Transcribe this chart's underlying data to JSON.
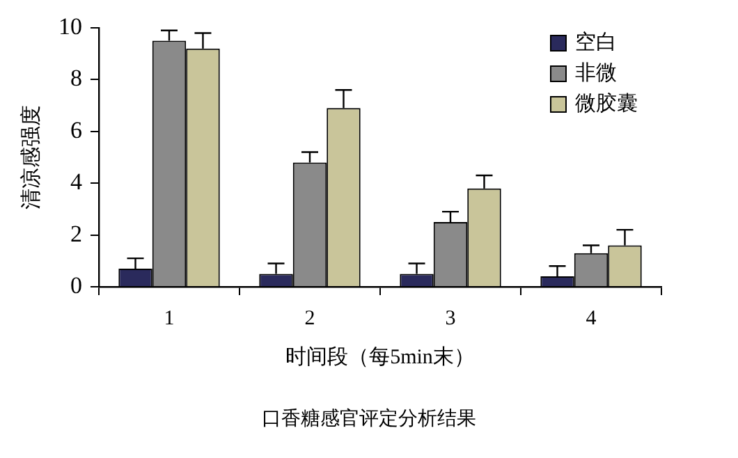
{
  "chart_data": {
    "type": "bar",
    "xlabel": "时间段（每5min末）",
    "ylabel": "清凉感强度",
    "categories": [
      "1",
      "2",
      "3",
      "4"
    ],
    "series": [
      {
        "name": "空白",
        "color": "#2a2a5c",
        "values": [
          0.7,
          0.5,
          0.5,
          0.4
        ],
        "errors": [
          [
            0.7,
            1.1
          ],
          [
            0.5,
            0.9
          ],
          [
            0.5,
            0.9
          ],
          [
            0.4,
            0.8
          ]
        ]
      },
      {
        "name": "非微",
        "color": "#8a8a8a",
        "values": [
          9.5,
          4.8,
          2.5,
          1.3
        ],
        "errors": [
          [
            9.5,
            9.9
          ],
          [
            4.8,
            5.2
          ],
          [
            2.5,
            2.9
          ],
          [
            1.3,
            1.6
          ]
        ]
      },
      {
        "name": "微胶囊",
        "color": "#c9c59a",
        "values": [
          9.2,
          6.9,
          3.8,
          1.6
        ],
        "errors": [
          [
            9.2,
            9.8
          ],
          [
            6.9,
            7.6
          ],
          [
            3.8,
            4.3
          ],
          [
            1.6,
            2.2
          ]
        ]
      }
    ],
    "ylim": [
      0,
      10
    ],
    "yticks": [
      0,
      2,
      4,
      6,
      8,
      10
    ],
    "grid": false,
    "legend": "top right",
    "annotations": [
      "口香糖感官评定分析结果"
    ]
  }
}
